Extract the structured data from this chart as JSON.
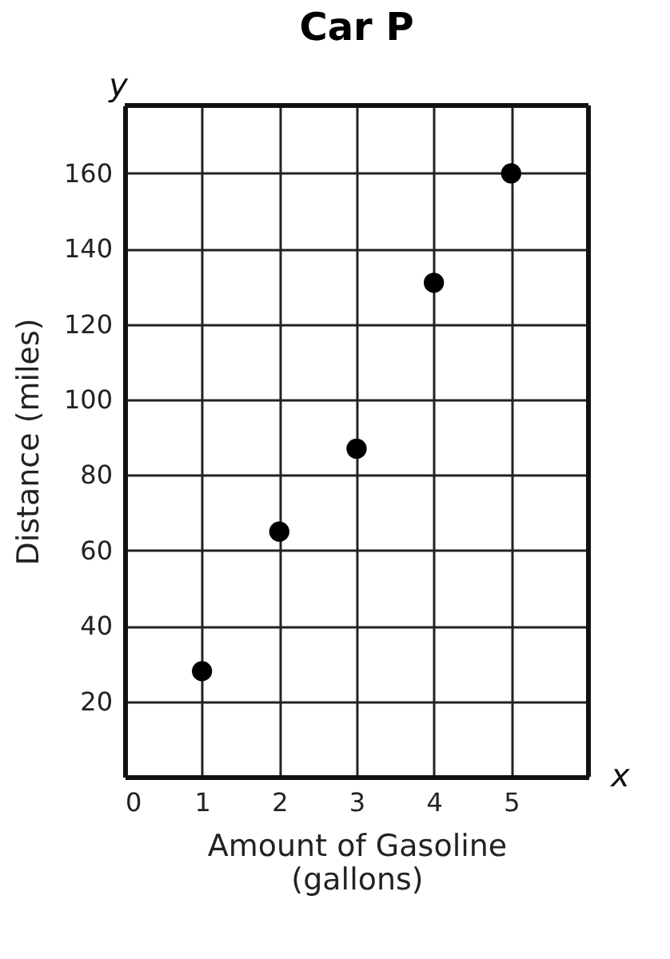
{
  "chart_data": {
    "type": "scatter",
    "title": "Car P",
    "xlabel": "Amount of Gasoline (gallons)",
    "ylabel": "Distance (miles)",
    "x": [
      1,
      2,
      3,
      4,
      5
    ],
    "series": [
      {
        "color": "#000000",
        "values": [
          28,
          65,
          87,
          131,
          160
        ]
      }
    ],
    "xlim": [
      0,
      6
    ],
    "ylim": [
      0,
      178
    ],
    "xticks": [
      0,
      1,
      2,
      3,
      4,
      5
    ],
    "yticks": [
      20,
      40,
      60,
      80,
      100,
      120,
      140,
      160
    ],
    "grid": true,
    "marker": "circle",
    "annotations": [
      "y",
      "x"
    ]
  }
}
